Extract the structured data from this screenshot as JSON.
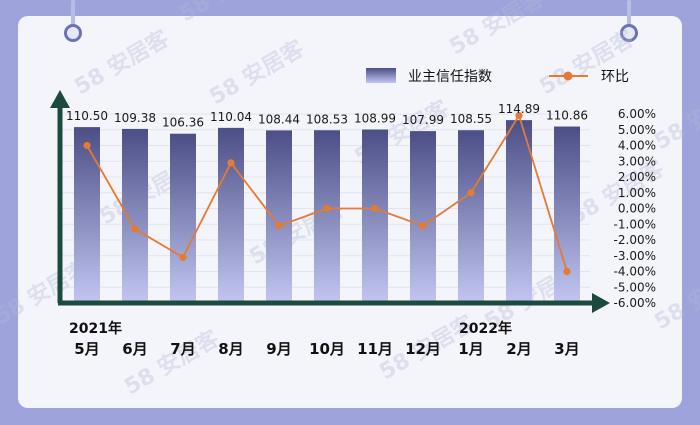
{
  "chart_data": {
    "type": "bar",
    "categories": [
      "5月",
      "6月",
      "7月",
      "8月",
      "9月",
      "10月",
      "11月",
      "12月",
      "1月",
      "2月",
      "3月"
    ],
    "year_labels": [
      {
        "text": "2021年",
        "category": "5月"
      },
      {
        "text": "2022年",
        "category": "1月"
      }
    ],
    "series": [
      {
        "name": "业主信任指数",
        "type": "bar",
        "axis": "left",
        "values": [
          110.5,
          109.38,
          106.36,
          110.04,
          108.44,
          108.53,
          108.99,
          107.99,
          108.55,
          114.89,
          110.86
        ],
        "labels": [
          "110.50",
          "109.38",
          "106.36",
          "110.04",
          "108.44",
          "108.53",
          "108.99",
          "107.99",
          "108.55",
          "114.89",
          "110.86"
        ],
        "color": "#4c4e86"
      },
      {
        "name": "环比",
        "type": "line",
        "axis": "right",
        "values": [
          4.0,
          -1.3,
          -3.1,
          2.9,
          -1.1,
          0.0,
          0.0,
          -1.1,
          1.0,
          5.9,
          -4.0
        ],
        "color": "#e47a34"
      }
    ],
    "y_left_range": [
      0,
      120
    ],
    "y_right_range": [
      -6,
      6
    ],
    "y_right_ticks": [
      "6.00%",
      "5.00%",
      "4.00%",
      "3.00%",
      "2.00%",
      "1.00%",
      "0.00%",
      "-1.00%",
      "-2.00%",
      "-3.00%",
      "-4.00%",
      "-5.00%",
      "-6.00%"
    ],
    "grid": true,
    "legend_placement": "top-right"
  },
  "watermark": "58 安居客",
  "colors": {
    "background": "#9ea3dc",
    "card": "#f4f4fb",
    "axis": "#1d4a3e",
    "bar_top": "#4c4e86",
    "bar_bottom": "#c1c6f1",
    "line": "#e47a34"
  }
}
